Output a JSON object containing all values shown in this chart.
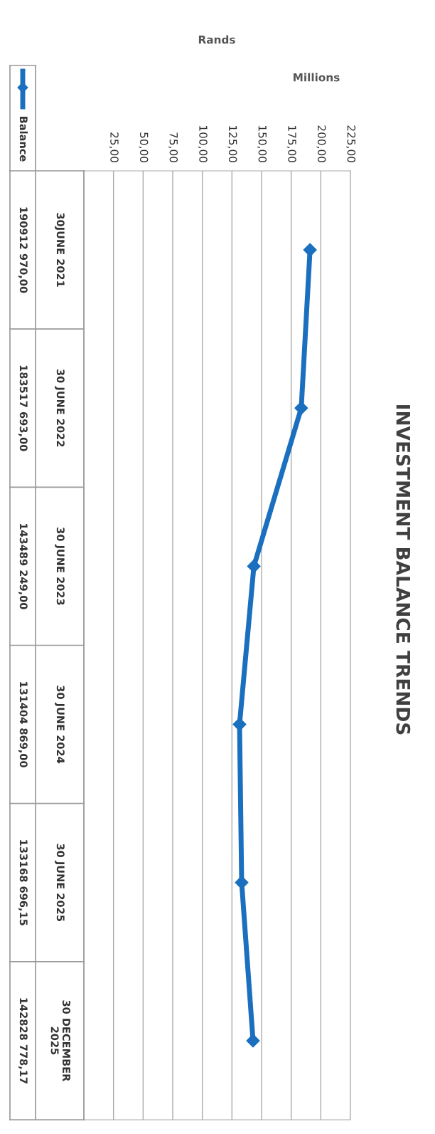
{
  "chart_data": {
    "type": "line",
    "orientation": "horizontal",
    "title": "INVESTMENT BALANCE TRENDS",
    "annotations": [
      "Rands",
      "Millions",
      "190912 970,00",
      "183517 693,00",
      "143489 249,00",
      "131404 869,00",
      "133168 696,15",
      "142828 778,17"
    ],
    "categories": [
      "30JUNE 2021",
      "30 JUNE 2022",
      "30 JUNE 2023",
      "30 JUNE 2024",
      "30 JUNE 2025",
      "30 DECEMBER\n2025"
    ],
    "series": [
      {
        "name": "Balance",
        "color": "#1a6fbf",
        "values": [
          190.9,
          183.5,
          143.5,
          131.4,
          133.2,
          142.8
        ]
      }
    ],
    "xlim": [
      0,
      225
    ],
    "xticks": [
      {
        "value": 25,
        "label": "25,00"
      },
      {
        "value": 50,
        "label": "50,00"
      },
      {
        "value": 75,
        "label": "75,00"
      },
      {
        "value": 100,
        "label": "100,00"
      },
      {
        "value": 125,
        "label": "125,00"
      },
      {
        "value": 150,
        "label": "150,00"
      },
      {
        "value": 175,
        "label": "175,00"
      },
      {
        "value": 200,
        "label": "200,00"
      },
      {
        "value": 225,
        "label": "225,00"
      }
    ],
    "grid": "x",
    "marker": "diamond",
    "legend": "left"
  }
}
